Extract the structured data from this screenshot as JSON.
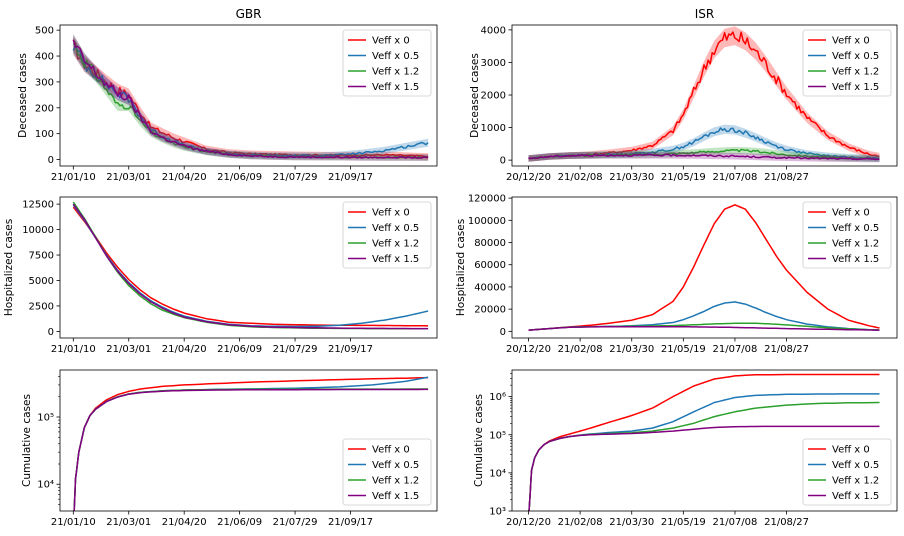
{
  "series_styles": [
    {
      "name": "Veff x 0",
      "color": "#ff0000"
    },
    {
      "name": "Veff x 0.5",
      "color": "#1f77b4"
    },
    {
      "name": "Veff x 1.2",
      "color": "#2ca02c"
    },
    {
      "name": "Veff x 1.5",
      "color": "#800080"
    }
  ],
  "chart_data": [
    {
      "id": "gbr-deceased",
      "type": "line",
      "title": "GBR",
      "ylabel": "Deceased cases",
      "yscale": "linear",
      "ylim": [
        -25,
        520
      ],
      "yticks": [
        "0",
        "100",
        "200",
        "300",
        "400",
        "500"
      ],
      "xticks": [
        "21/01/10",
        "21/03/01",
        "21/04/20",
        "21/06/09",
        "21/07/29",
        "21/09/17"
      ],
      "xtick_days": [
        0,
        50,
        100,
        150,
        200,
        250
      ],
      "xlim": [
        -12,
        328
      ],
      "band": true,
      "legend": "top-right",
      "x": [
        0,
        10,
        20,
        30,
        40,
        50,
        60,
        70,
        80,
        90,
        100,
        120,
        140,
        160,
        180,
        200,
        220,
        240,
        260,
        280,
        300,
        320
      ],
      "series": [
        {
          "name": "Veff x 0",
          "values": [
            440,
            370,
            335,
            300,
            268,
            250,
            185,
            125,
            105,
            85,
            70,
            40,
            27,
            22,
            20,
            18,
            17,
            16,
            17,
            18,
            15,
            12
          ]
        },
        {
          "name": "Veff x 0.5",
          "values": [
            440,
            370,
            330,
            290,
            255,
            235,
            170,
            115,
            90,
            72,
            55,
            32,
            22,
            18,
            15,
            15,
            15,
            18,
            25,
            35,
            50,
            65
          ]
        },
        {
          "name": "Veff x 1.2",
          "values": [
            450,
            380,
            330,
            270,
            210,
            210,
            150,
            105,
            82,
            62,
            48,
            30,
            20,
            14,
            12,
            10,
            10,
            9,
            9,
            8,
            8,
            8
          ]
        },
        {
          "name": "Veff x 1.5",
          "values": [
            450,
            380,
            335,
            290,
            255,
            235,
            165,
            110,
            86,
            68,
            52,
            32,
            20,
            14,
            11,
            10,
            9,
            9,
            8,
            8,
            8,
            7
          ]
        }
      ]
    },
    {
      "id": "isr-deceased",
      "type": "line",
      "title": "ISR",
      "ylabel": "Deceased cases",
      "yscale": "linear",
      "ylim": [
        -180,
        4150
      ],
      "yticks": [
        "0",
        "1000",
        "2000",
        "3000",
        "4000"
      ],
      "xticks": [
        "20/12/20",
        "21/02/08",
        "21/03/30",
        "21/05/19",
        "21/07/08",
        "21/08/27"
      ],
      "xtick_days": [
        0,
        50,
        100,
        150,
        200,
        250
      ],
      "xlim": [
        -16,
        357
      ],
      "band": true,
      "legend": "top-right",
      "x": [
        0,
        20,
        40,
        60,
        80,
        100,
        120,
        140,
        150,
        160,
        170,
        180,
        190,
        200,
        210,
        220,
        230,
        240,
        250,
        270,
        290,
        310,
        330,
        340
      ],
      "series": [
        {
          "name": "Veff x 0",
          "values": [
            50,
            110,
            140,
            170,
            230,
            300,
            450,
            900,
            1400,
            2100,
            2800,
            3400,
            3750,
            3820,
            3650,
            3350,
            2950,
            2500,
            2050,
            1300,
            750,
            400,
            180,
            120
          ]
        },
        {
          "name": "Veff x 0.5",
          "values": [
            50,
            110,
            140,
            155,
            175,
            200,
            240,
            330,
            420,
            550,
            720,
            870,
            950,
            930,
            830,
            700,
            560,
            430,
            330,
            200,
            130,
            90,
            70,
            60
          ]
        },
        {
          "name": "Veff x 1.2",
          "values": [
            50,
            110,
            140,
            150,
            160,
            170,
            180,
            200,
            215,
            230,
            250,
            270,
            285,
            295,
            290,
            270,
            240,
            200,
            170,
            120,
            80,
            60,
            50,
            40
          ]
        },
        {
          "name": "Veff x 1.5",
          "values": [
            50,
            110,
            140,
            145,
            150,
            150,
            150,
            150,
            148,
            145,
            140,
            135,
            128,
            120,
            110,
            100,
            90,
            80,
            72,
            60,
            50,
            40,
            35,
            30
          ]
        }
      ]
    },
    {
      "id": "gbr-hospitalized",
      "type": "line",
      "title": "",
      "ylabel": "Hospitalized cases",
      "yscale": "linear",
      "ylim": [
        -650,
        13200
      ],
      "yticks": [
        "0",
        "2500",
        "5000",
        "7500",
        "10000",
        "12500"
      ],
      "xticks": [
        "21/01/10",
        "21/03/01",
        "21/04/20",
        "21/06/09",
        "21/07/29",
        "21/09/17"
      ],
      "xtick_days": [
        0,
        50,
        100,
        150,
        200,
        250
      ],
      "xlim": [
        -12,
        328
      ],
      "band": false,
      "legend": "top-right",
      "x": [
        0,
        10,
        20,
        30,
        40,
        50,
        60,
        70,
        80,
        90,
        100,
        120,
        140,
        160,
        180,
        200,
        220,
        240,
        260,
        280,
        300,
        320
      ],
      "series": [
        {
          "name": "Veff x 0",
          "values": [
            12200,
            10800,
            9300,
            7700,
            6300,
            5100,
            4100,
            3300,
            2700,
            2200,
            1800,
            1250,
            900,
            800,
            700,
            650,
            620,
            600,
            590,
            580,
            560,
            540
          ]
        },
        {
          "name": "Veff x 0.5",
          "values": [
            12400,
            10900,
            9200,
            7500,
            6000,
            4800,
            3800,
            3000,
            2400,
            1900,
            1500,
            1000,
            700,
            550,
            500,
            480,
            500,
            600,
            800,
            1100,
            1500,
            2000
          ]
        },
        {
          "name": "Veff x 1.2",
          "values": [
            12700,
            11100,
            9300,
            7400,
            5800,
            4500,
            3500,
            2700,
            2100,
            1700,
            1350,
            900,
            600,
            450,
            380,
            340,
            310,
            290,
            280,
            270,
            260,
            250
          ]
        },
        {
          "name": "Veff x 1.5",
          "values": [
            12500,
            11000,
            9200,
            7400,
            5900,
            4700,
            3700,
            2900,
            2300,
            1800,
            1400,
            950,
            650,
            500,
            420,
            380,
            350,
            320,
            300,
            290,
            280,
            270
          ]
        }
      ]
    },
    {
      "id": "isr-hospitalized",
      "type": "line",
      "title": "",
      "ylabel": "Hospitalized cases",
      "yscale": "linear",
      "ylim": [
        -6000,
        121000
      ],
      "yticks": [
        "0",
        "20000",
        "40000",
        "60000",
        "80000",
        "100000",
        "120000"
      ],
      "xticks": [
        "20/12/20",
        "21/02/08",
        "21/03/30",
        "21/05/19",
        "21/07/08",
        "21/08/27"
      ],
      "xtick_days": [
        0,
        50,
        100,
        150,
        200,
        250
      ],
      "xlim": [
        -16,
        357
      ],
      "band": false,
      "legend": "top-right",
      "x": [
        0,
        20,
        40,
        60,
        80,
        100,
        120,
        140,
        150,
        160,
        170,
        180,
        190,
        200,
        210,
        220,
        230,
        240,
        250,
        270,
        290,
        310,
        330,
        340
      ],
      "series": [
        {
          "name": "Veff x 0",
          "values": [
            1000,
            2500,
            4000,
            5500,
            7500,
            10000,
            15000,
            27000,
            40000,
            58000,
            78000,
            97000,
            110000,
            114000,
            110000,
            98000,
            83000,
            68000,
            55000,
            35000,
            20000,
            10000,
            5000,
            3000
          ]
        },
        {
          "name": "Veff x 0.5",
          "values": [
            1000,
            2500,
            3800,
            4200,
            4500,
            5000,
            6000,
            8000,
            10500,
            14000,
            18000,
            22500,
            25500,
            26500,
            24500,
            21000,
            17000,
            13500,
            10500,
            6500,
            4000,
            2500,
            1500,
            1000
          ]
        },
        {
          "name": "Veff x 1.2",
          "values": [
            1000,
            2500,
            3800,
            4100,
            4300,
            4500,
            4800,
            5200,
            5500,
            5900,
            6300,
            6700,
            7000,
            7200,
            7300,
            7200,
            6900,
            6400,
            5800,
            4500,
            3200,
            2200,
            1500,
            1200
          ]
        },
        {
          "name": "Veff x 1.5",
          "values": [
            1000,
            2500,
            3700,
            4000,
            4100,
            4200,
            4200,
            4200,
            4100,
            4000,
            3900,
            3800,
            3700,
            3500,
            3300,
            3100,
            2900,
            2700,
            2500,
            2100,
            1800,
            1500,
            1200,
            1100
          ]
        }
      ]
    },
    {
      "id": "gbr-cumulative",
      "type": "line",
      "title": "",
      "ylabel": "Cumulative cases",
      "yscale": "log",
      "ylim": [
        4000,
        500000
      ],
      "yticks": [
        "10^4",
        "10^5"
      ],
      "ytick_values": [
        10000,
        100000
      ],
      "xticks": [
        "21/01/10",
        "21/03/01",
        "21/04/20",
        "21/06/09",
        "21/07/29",
        "21/09/17"
      ],
      "xtick_days": [
        0,
        50,
        100,
        150,
        200,
        250
      ],
      "xlim": [
        -12,
        328
      ],
      "band": false,
      "legend": "bottom-right",
      "x": [
        0,
        2,
        5,
        10,
        15,
        20,
        30,
        40,
        50,
        60,
        80,
        100,
        130,
        160,
        200,
        240,
        270,
        300,
        320
      ],
      "series": [
        {
          "name": "Veff x 0",
          "values": [
            2000,
            12000,
            30000,
            70000,
            105000,
            135000,
            180000,
            215000,
            240000,
            260000,
            285000,
            300000,
            315000,
            330000,
            345000,
            360000,
            370000,
            378000,
            385000
          ]
        },
        {
          "name": "Veff x 0.5",
          "values": [
            2000,
            12000,
            30000,
            70000,
            105000,
            130000,
            170000,
            200000,
            220000,
            232000,
            245000,
            252000,
            258000,
            262000,
            268000,
            280000,
            300000,
            340000,
            390000
          ]
        },
        {
          "name": "Veff x 1.2",
          "values": [
            2000,
            12000,
            30000,
            70000,
            105000,
            130000,
            170000,
            200000,
            220000,
            232000,
            245000,
            252000,
            256000,
            258000,
            259000,
            260000,
            260000,
            260500,
            261000
          ]
        },
        {
          "name": "Veff x 1.5",
          "values": [
            2000,
            12000,
            30000,
            70000,
            105000,
            130000,
            170000,
            198000,
            218000,
            230000,
            242000,
            248000,
            252000,
            254000,
            255000,
            256000,
            256000,
            256500,
            257000
          ]
        }
      ]
    },
    {
      "id": "isr-cumulative",
      "type": "line",
      "title": "",
      "ylabel": "Cumulative cases",
      "yscale": "log",
      "ylim": [
        1000,
        5000000
      ],
      "yticks": [
        "10^3",
        "10^4",
        "10^5",
        "10^6"
      ],
      "ytick_values": [
        1000,
        10000,
        100000,
        1000000
      ],
      "xticks": [
        "20/12/20",
        "21/02/08",
        "21/03/30",
        "21/05/19",
        "21/07/08",
        "21/08/27"
      ],
      "xtick_days": [
        0,
        50,
        100,
        150,
        200,
        250
      ],
      "xlim": [
        -16,
        357
      ],
      "band": false,
      "legend": "bottom-right",
      "x": [
        0,
        3,
        6,
        10,
        15,
        20,
        30,
        40,
        50,
        60,
        80,
        100,
        120,
        140,
        160,
        180,
        200,
        220,
        250,
        280,
        310,
        340
      ],
      "series": [
        {
          "name": "Veff x 0",
          "values": [
            600,
            12000,
            25000,
            40000,
            55000,
            68000,
            88000,
            105000,
            125000,
            150000,
            220000,
            320000,
            500000,
            1000000,
            1900000,
            2900000,
            3500000,
            3750000,
            3800000,
            3800000,
            3800000,
            3800000
          ]
        },
        {
          "name": "Veff x 0.5",
          "values": [
            600,
            12000,
            25000,
            40000,
            55000,
            66000,
            80000,
            90000,
            98000,
            105000,
            115000,
            125000,
            150000,
            220000,
            400000,
            700000,
            950000,
            1080000,
            1150000,
            1170000,
            1180000,
            1180000
          ]
        },
        {
          "name": "Veff x 1.2",
          "values": [
            600,
            12000,
            25000,
            40000,
            55000,
            66000,
            80000,
            90000,
            97000,
            102000,
            108000,
            113000,
            125000,
            150000,
            200000,
            300000,
            400000,
            500000,
            600000,
            660000,
            690000,
            700000
          ]
        },
        {
          "name": "Veff x 1.5",
          "values": [
            600,
            12000,
            25000,
            40000,
            55000,
            66000,
            80000,
            90000,
            96000,
            100000,
            104000,
            108000,
            115000,
            125000,
            140000,
            155000,
            163000,
            165000,
            166000,
            166000,
            166000,
            166000
          ]
        }
      ]
    }
  ]
}
